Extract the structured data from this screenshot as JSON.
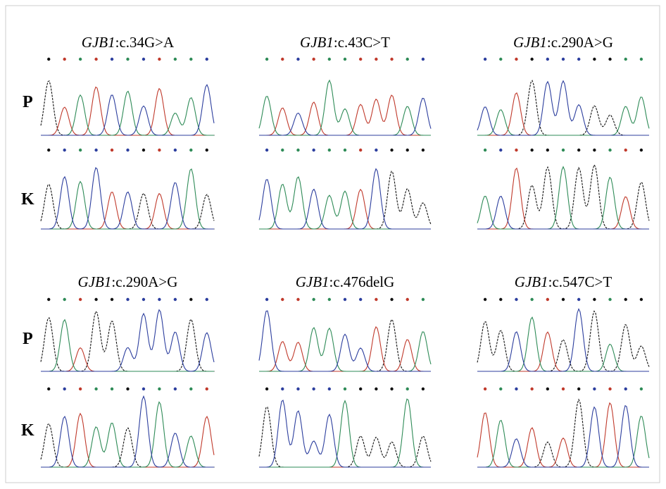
{
  "panels": [
    {
      "gene": "GJB1",
      "variant": ":c.34G>A"
    },
    {
      "gene": "GJB1",
      "variant": ":c.43C>T"
    },
    {
      "gene": "GJB1",
      "variant": ":c.290A>G"
    },
    {
      "gene": "GJB1",
      "variant": ":c.290A>G"
    },
    {
      "gene": "GJB1",
      "variant": ":c.476delG"
    },
    {
      "gene": "GJB1",
      "variant": ":c.547C>T"
    }
  ],
  "row_labels": {
    "top": [
      "P",
      "K"
    ],
    "bottom": [
      "P",
      "K"
    ]
  }
}
